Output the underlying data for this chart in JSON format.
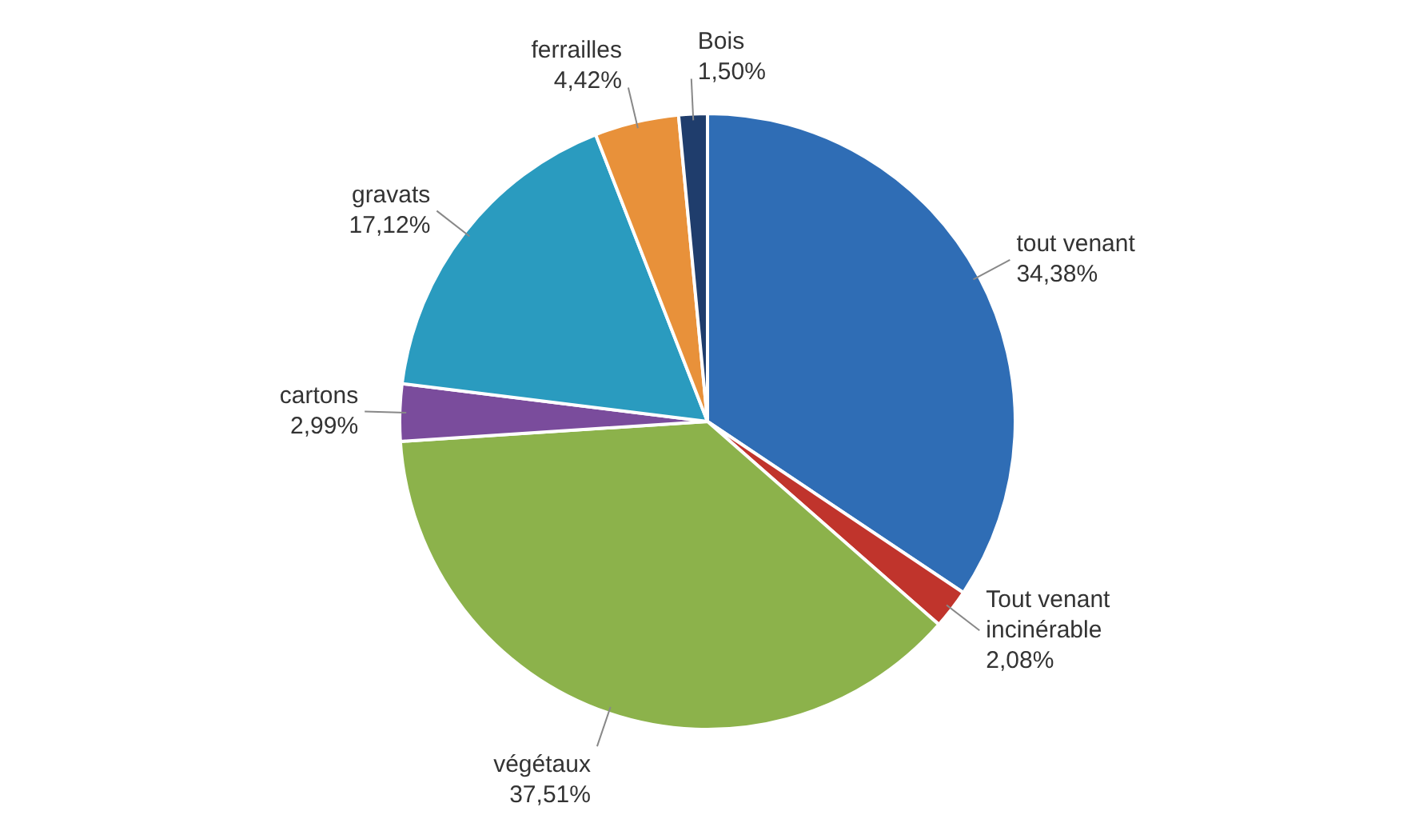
{
  "chart_data": {
    "type": "pie",
    "categories": [
      "tout venant",
      "Tout venant incinérable",
      "végétaux",
      "cartons",
      "gravats",
      "ferrailles",
      "Bois"
    ],
    "values": [
      34.38,
      2.08,
      37.51,
      2.99,
      17.12,
      4.42,
      1.5
    ],
    "value_labels": [
      "34,38%",
      "2,08%",
      "37,51%",
      "2,99%",
      "17,12%",
      "4,42%",
      "1,50%"
    ],
    "colors": [
      "#2f6db5",
      "#c0342c",
      "#8cb24b",
      "#7a4c9c",
      "#2a9bbf",
      "#e8913a",
      "#1f3d6c"
    ],
    "legend": false
  }
}
